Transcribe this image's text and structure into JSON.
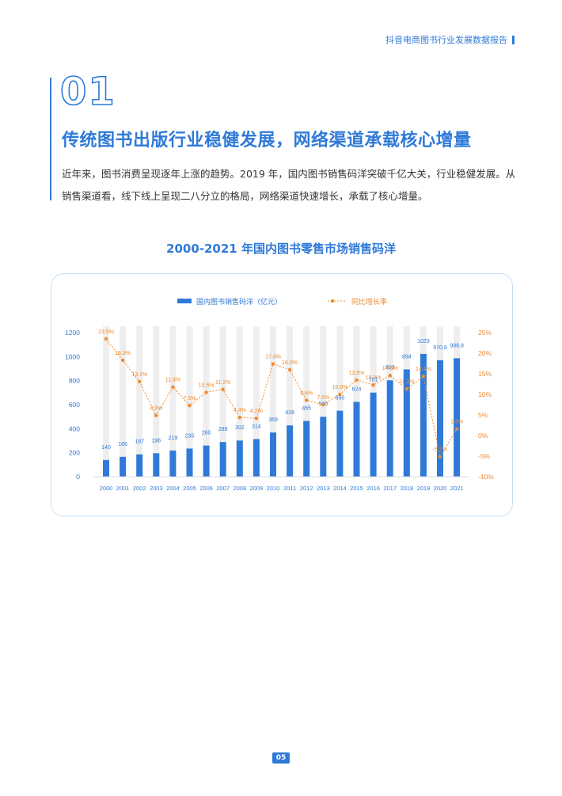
{
  "header": {
    "report_title": "抖音电商图书行业发展数据报告"
  },
  "section": {
    "number": "01",
    "title": "传统图书出版行业稳健发展，网络渠道承载核心增量",
    "body": "近年来，图书消费呈现逐年上涨的趋势。2019 年，国内图书销售码洋突破千亿大关，行业稳健发展。从销售渠道看，线下线上呈现二八分立的格局，网络渠道快速增长，承载了核心增量。"
  },
  "chart_data": {
    "type": "bar",
    "title": "2000-2021 年国内图书零售市场销售码洋",
    "categories": [
      "2000",
      "2001",
      "2002",
      "2003",
      "2004",
      "2005",
      "2006",
      "2007",
      "2008",
      "2009",
      "2010",
      "2011",
      "2012",
      "2013",
      "2014",
      "2015",
      "2016",
      "2017",
      "2018",
      "2019",
      "2020",
      "2021"
    ],
    "series": [
      {
        "name": "国内图书销售码洋（亿元）",
        "type": "bar",
        "axis": "left",
        "color": "#2f7ad8",
        "values": [
          140,
          166,
          187,
          196,
          219,
          235,
          260,
          289,
          302,
          314,
          369,
          428,
          465,
          500,
          550,
          624,
          701,
          803,
          894,
          1023,
          970.8,
          986.8
        ],
        "labels": [
          "140",
          "166",
          "187",
          "196",
          "219",
          "235",
          "260",
          "289",
          "302",
          "314",
          "369",
          "428",
          "465",
          "500",
          "550",
          "624",
          "701",
          "803",
          "894",
          "1023",
          "970.8",
          "986.8"
        ]
      },
      {
        "name": "同比增长率",
        "type": "line",
        "axis": "right",
        "color": "#f08a2c",
        "values": [
          23.5,
          18.3,
          13.1,
          4.9,
          11.8,
          7.3,
          10.5,
          11.2,
          4.4,
          4.2,
          17.4,
          16.0,
          8.6,
          7.5,
          10.0,
          13.5,
          12.3,
          14.6,
          11.3,
          14.4,
          -5.1,
          1.6
        ],
        "labels": [
          "23.5%",
          "18.3%",
          "13.1%",
          "4.9%",
          "11.8%",
          "7.3%",
          "10.5%",
          "11.2%",
          "4.4%",
          "4.2%",
          "17.4%",
          "16.0%",
          "8.6%",
          "7.5%",
          "10.0%",
          "13.5%",
          "12.3%",
          "14.6%",
          "11.3%",
          "14.4%",
          "-5.1%",
          "1.6%"
        ]
      }
    ],
    "y_left": {
      "min": 0,
      "max": 1200,
      "ticks": [
        "0",
        "200",
        "400",
        "600",
        "800",
        "1000",
        "1200"
      ]
    },
    "y_right": {
      "min": -10,
      "max": 25,
      "ticks": [
        "-10%",
        "-5%",
        "0%",
        "5%",
        "10%",
        "15%",
        "20%",
        "25%"
      ]
    },
    "background_bars": true,
    "legend_position": "top"
  },
  "page": {
    "number": "05"
  }
}
